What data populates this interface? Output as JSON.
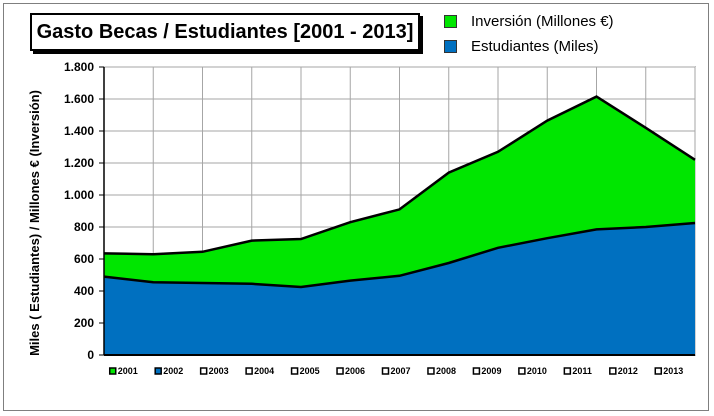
{
  "chart_data": {
    "type": "area",
    "title": "Gasto Becas / Estudiantes [2001 - 2013]",
    "ylabel": "Miles ( Estudiantes) / Millones € (Inversión)",
    "xlabel": "",
    "ylim": [
      0,
      1800
    ],
    "yticks": [
      0,
      200,
      400,
      600,
      800,
      1000,
      1200,
      1400,
      1600,
      1800
    ],
    "ytick_labels": [
      "0",
      "200",
      "400",
      "600",
      "800",
      "1.000",
      "1.200",
      "1.400",
      "1.600",
      "1.800"
    ],
    "categories": [
      "2001",
      "2002",
      "2003",
      "2004",
      "2005",
      "2006",
      "2007",
      "2008",
      "2009",
      "2010",
      "2011",
      "2012",
      "2013"
    ],
    "grid": true,
    "legend_position": "top-right",
    "series": [
      {
        "name": "Inversión (Millones €)",
        "color": "#00e600",
        "values": [
          635,
          630,
          645,
          715,
          725,
          830,
          910,
          1140,
          1270,
          1465,
          1615,
          1420,
          1220
        ]
      },
      {
        "name": "Estudiantes (Miles)",
        "color": "#0070c0",
        "values": [
          490,
          455,
          450,
          445,
          425,
          465,
          495,
          575,
          670,
          730,
          785,
          800,
          825
        ]
      }
    ],
    "marker_colors": [
      "#00e600",
      "#0070c0",
      "#ffffff",
      "#ffffff",
      "#ffffff",
      "#ffffff",
      "#ffffff",
      "#ffffff",
      "#ffffff",
      "#ffffff",
      "#ffffff",
      "#ffffff",
      "#ffffff"
    ]
  }
}
